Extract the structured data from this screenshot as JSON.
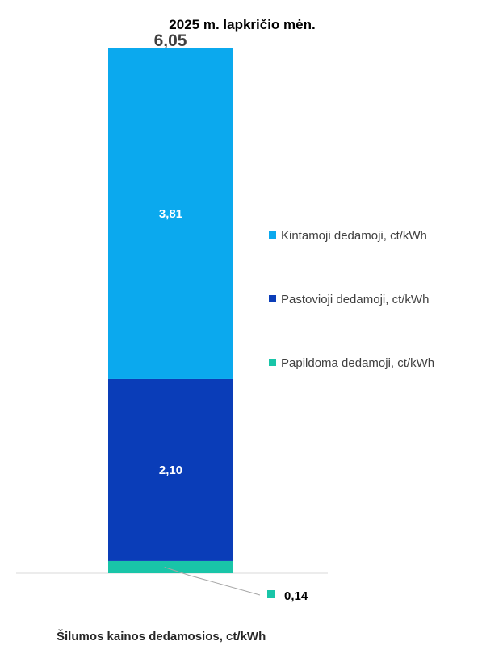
{
  "chart_data": {
    "type": "bar",
    "stacked": true,
    "title": "2025 m.  lapkričio mėn.",
    "categories": [
      "2025 m.  lapkričio mėn."
    ],
    "total_label": "6,05",
    "total": 6.05,
    "xlabel": "Šilumos kainos dedamosios, ct/kWh",
    "ylabel": "",
    "grid": false,
    "legend_position": "right",
    "series": [
      {
        "name": "Papildoma dedamoji, ct/kWh",
        "values": [
          0.14
        ],
        "label": "0,14",
        "color": "#19C5A8"
      },
      {
        "name": "Pastovioji dedamoji, ct/kWh",
        "values": [
          2.1
        ],
        "label": "2,10",
        "color": "#0A3DB8"
      },
      {
        "name": "Kintamoji dedamoji, ct/kWh",
        "values": [
          3.81
        ],
        "label": "3,81",
        "color": "#0BA9EE"
      }
    ],
    "legend_order": [
      "Kintamoji dedamoji, ct/kWh",
      "Pastovioji dedamoji, ct/kWh",
      "Papildoma dedamoji, ct/kWh"
    ]
  }
}
